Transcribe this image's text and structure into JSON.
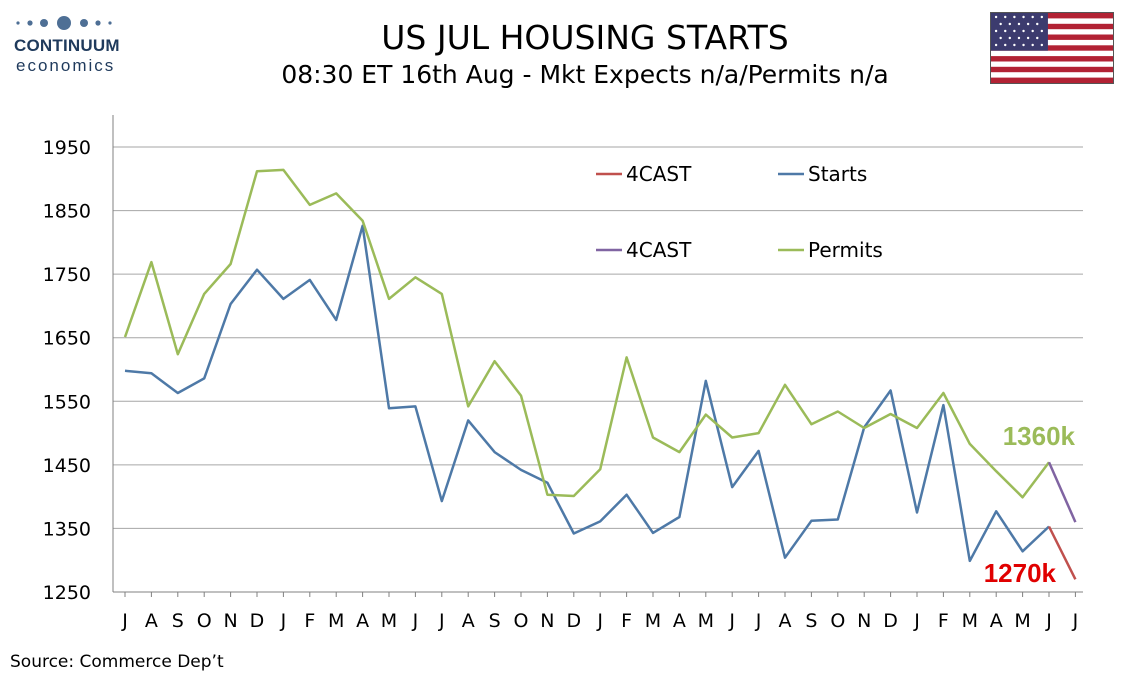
{
  "logo": {
    "name": "CONTINUUM",
    "sub": "economics"
  },
  "header": {
    "title": "US JUL HOUSING STARTS",
    "subtitle": "08:30 ET 16th Aug - Mkt Expects n/a/Permits n/a"
  },
  "footer": {
    "source": "Source: Commerce Dep’t"
  },
  "colors": {
    "starts": "#4e79a7",
    "permits": "#9bbb59",
    "forecast_starts": "#c0504d",
    "forecast_permits": "#8064a2",
    "annot_starts": "#e00000",
    "annot_permits": "#9bbb59",
    "grid": "#a6a6a6"
  },
  "chart_data": {
    "type": "line",
    "categories": [
      "J",
      "A",
      "S",
      "O",
      "N",
      "D",
      "J",
      "F",
      "M",
      "A",
      "M",
      "J",
      "J",
      "A",
      "S",
      "O",
      "N",
      "D",
      "J",
      "F",
      "M",
      "A",
      "M",
      "J",
      "J",
      "A",
      "S",
      "O",
      "N",
      "D",
      "J",
      "F",
      "M",
      "A",
      "M",
      "J",
      "J"
    ],
    "ylim": [
      1250,
      1950
    ],
    "yticks": [
      1250,
      1350,
      1450,
      1550,
      1650,
      1750,
      1850,
      1950
    ],
    "grid": true,
    "legend_position": "top-center",
    "series": [
      {
        "name": "Starts",
        "key": "starts",
        "values": [
          1598,
          1594,
          1563,
          1586,
          1703,
          1757,
          1711,
          1741,
          1678,
          1826,
          1539,
          1542,
          1393,
          1520,
          1470,
          1442,
          1422,
          1342,
          1361,
          1403,
          1343,
          1368,
          1582,
          1415,
          1472,
          1304,
          1362,
          1364,
          1509,
          1567,
          1375,
          1544,
          1299,
          1377,
          1314,
          1353,
          null
        ]
      },
      {
        "name": "Permits",
        "key": "permits",
        "values": [
          1651,
          1769,
          1624,
          1719,
          1766,
          1912,
          1914,
          1859,
          1877,
          1834,
          1711,
          1745,
          1719,
          1542,
          1613,
          1559,
          1403,
          1401,
          1443,
          1619,
          1493,
          1470,
          1529,
          1493,
          1500,
          1576,
          1514,
          1534,
          1508,
          1530,
          1508,
          1563,
          1483,
          1440,
          1399,
          1454,
          null
        ]
      },
      {
        "name": "4CAST",
        "key": "forecast_starts",
        "values": [
          null,
          null,
          null,
          null,
          null,
          null,
          null,
          null,
          null,
          null,
          null,
          null,
          null,
          null,
          null,
          null,
          null,
          null,
          null,
          null,
          null,
          null,
          null,
          null,
          null,
          null,
          null,
          null,
          null,
          null,
          null,
          null,
          null,
          null,
          null,
          1353,
          1270
        ]
      },
      {
        "name": "4CAST",
        "key": "forecast_permits",
        "values": [
          null,
          null,
          null,
          null,
          null,
          null,
          null,
          null,
          null,
          null,
          null,
          null,
          null,
          null,
          null,
          null,
          null,
          null,
          null,
          null,
          null,
          null,
          null,
          null,
          null,
          null,
          null,
          null,
          null,
          null,
          null,
          null,
          null,
          null,
          null,
          1454,
          1360
        ]
      }
    ],
    "annotations": [
      {
        "text": "1360k",
        "key": "annot_permits"
      },
      {
        "text": "1270k",
        "key": "annot_starts"
      }
    ]
  }
}
